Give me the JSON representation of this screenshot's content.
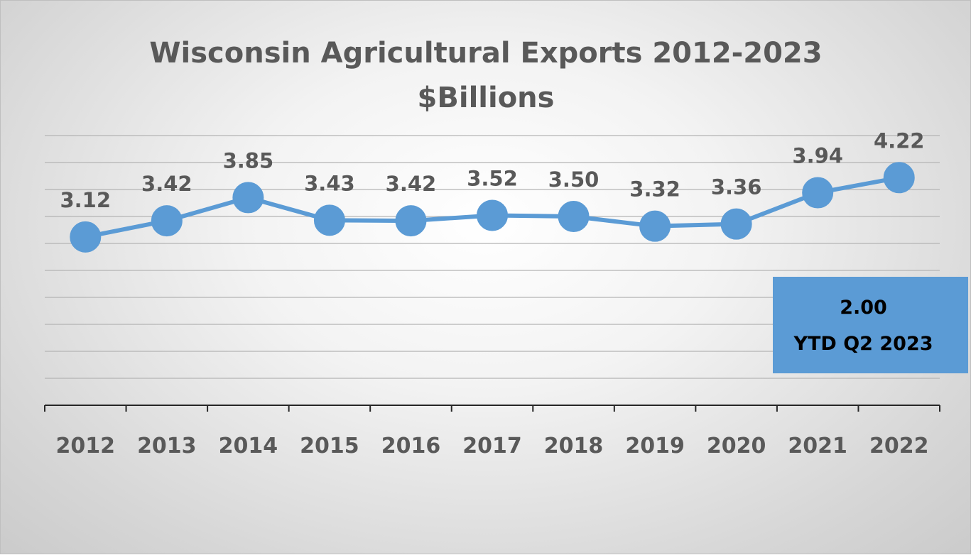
{
  "chart_data": {
    "type": "line",
    "title": "Wisconsin Agricultural Exports 2012-2023",
    "subtitle": "$Billions",
    "categories": [
      "2012",
      "2013",
      "2014",
      "2015",
      "2016",
      "2017",
      "2018",
      "2019",
      "2020",
      "2021",
      "2022"
    ],
    "series": [
      {
        "values": [
          3.12,
          3.42,
          3.85,
          3.43,
          3.42,
          3.52,
          3.5,
          3.32,
          3.36,
          3.94,
          4.22
        ],
        "data_labels": [
          "3.12",
          "3.42",
          "3.85",
          "3.43",
          "3.42",
          "3.52",
          "3.50",
          "3.32",
          "3.36",
          "3.94",
          "4.22"
        ],
        "color": "#5b9bd5"
      }
    ],
    "ylim": [
      0,
      5
    ],
    "grid": true,
    "legend": "none",
    "annotation": {
      "value": "2.00",
      "label": "YTD Q2 2023",
      "color": "#5b9bd5",
      "placement": "right"
    }
  }
}
